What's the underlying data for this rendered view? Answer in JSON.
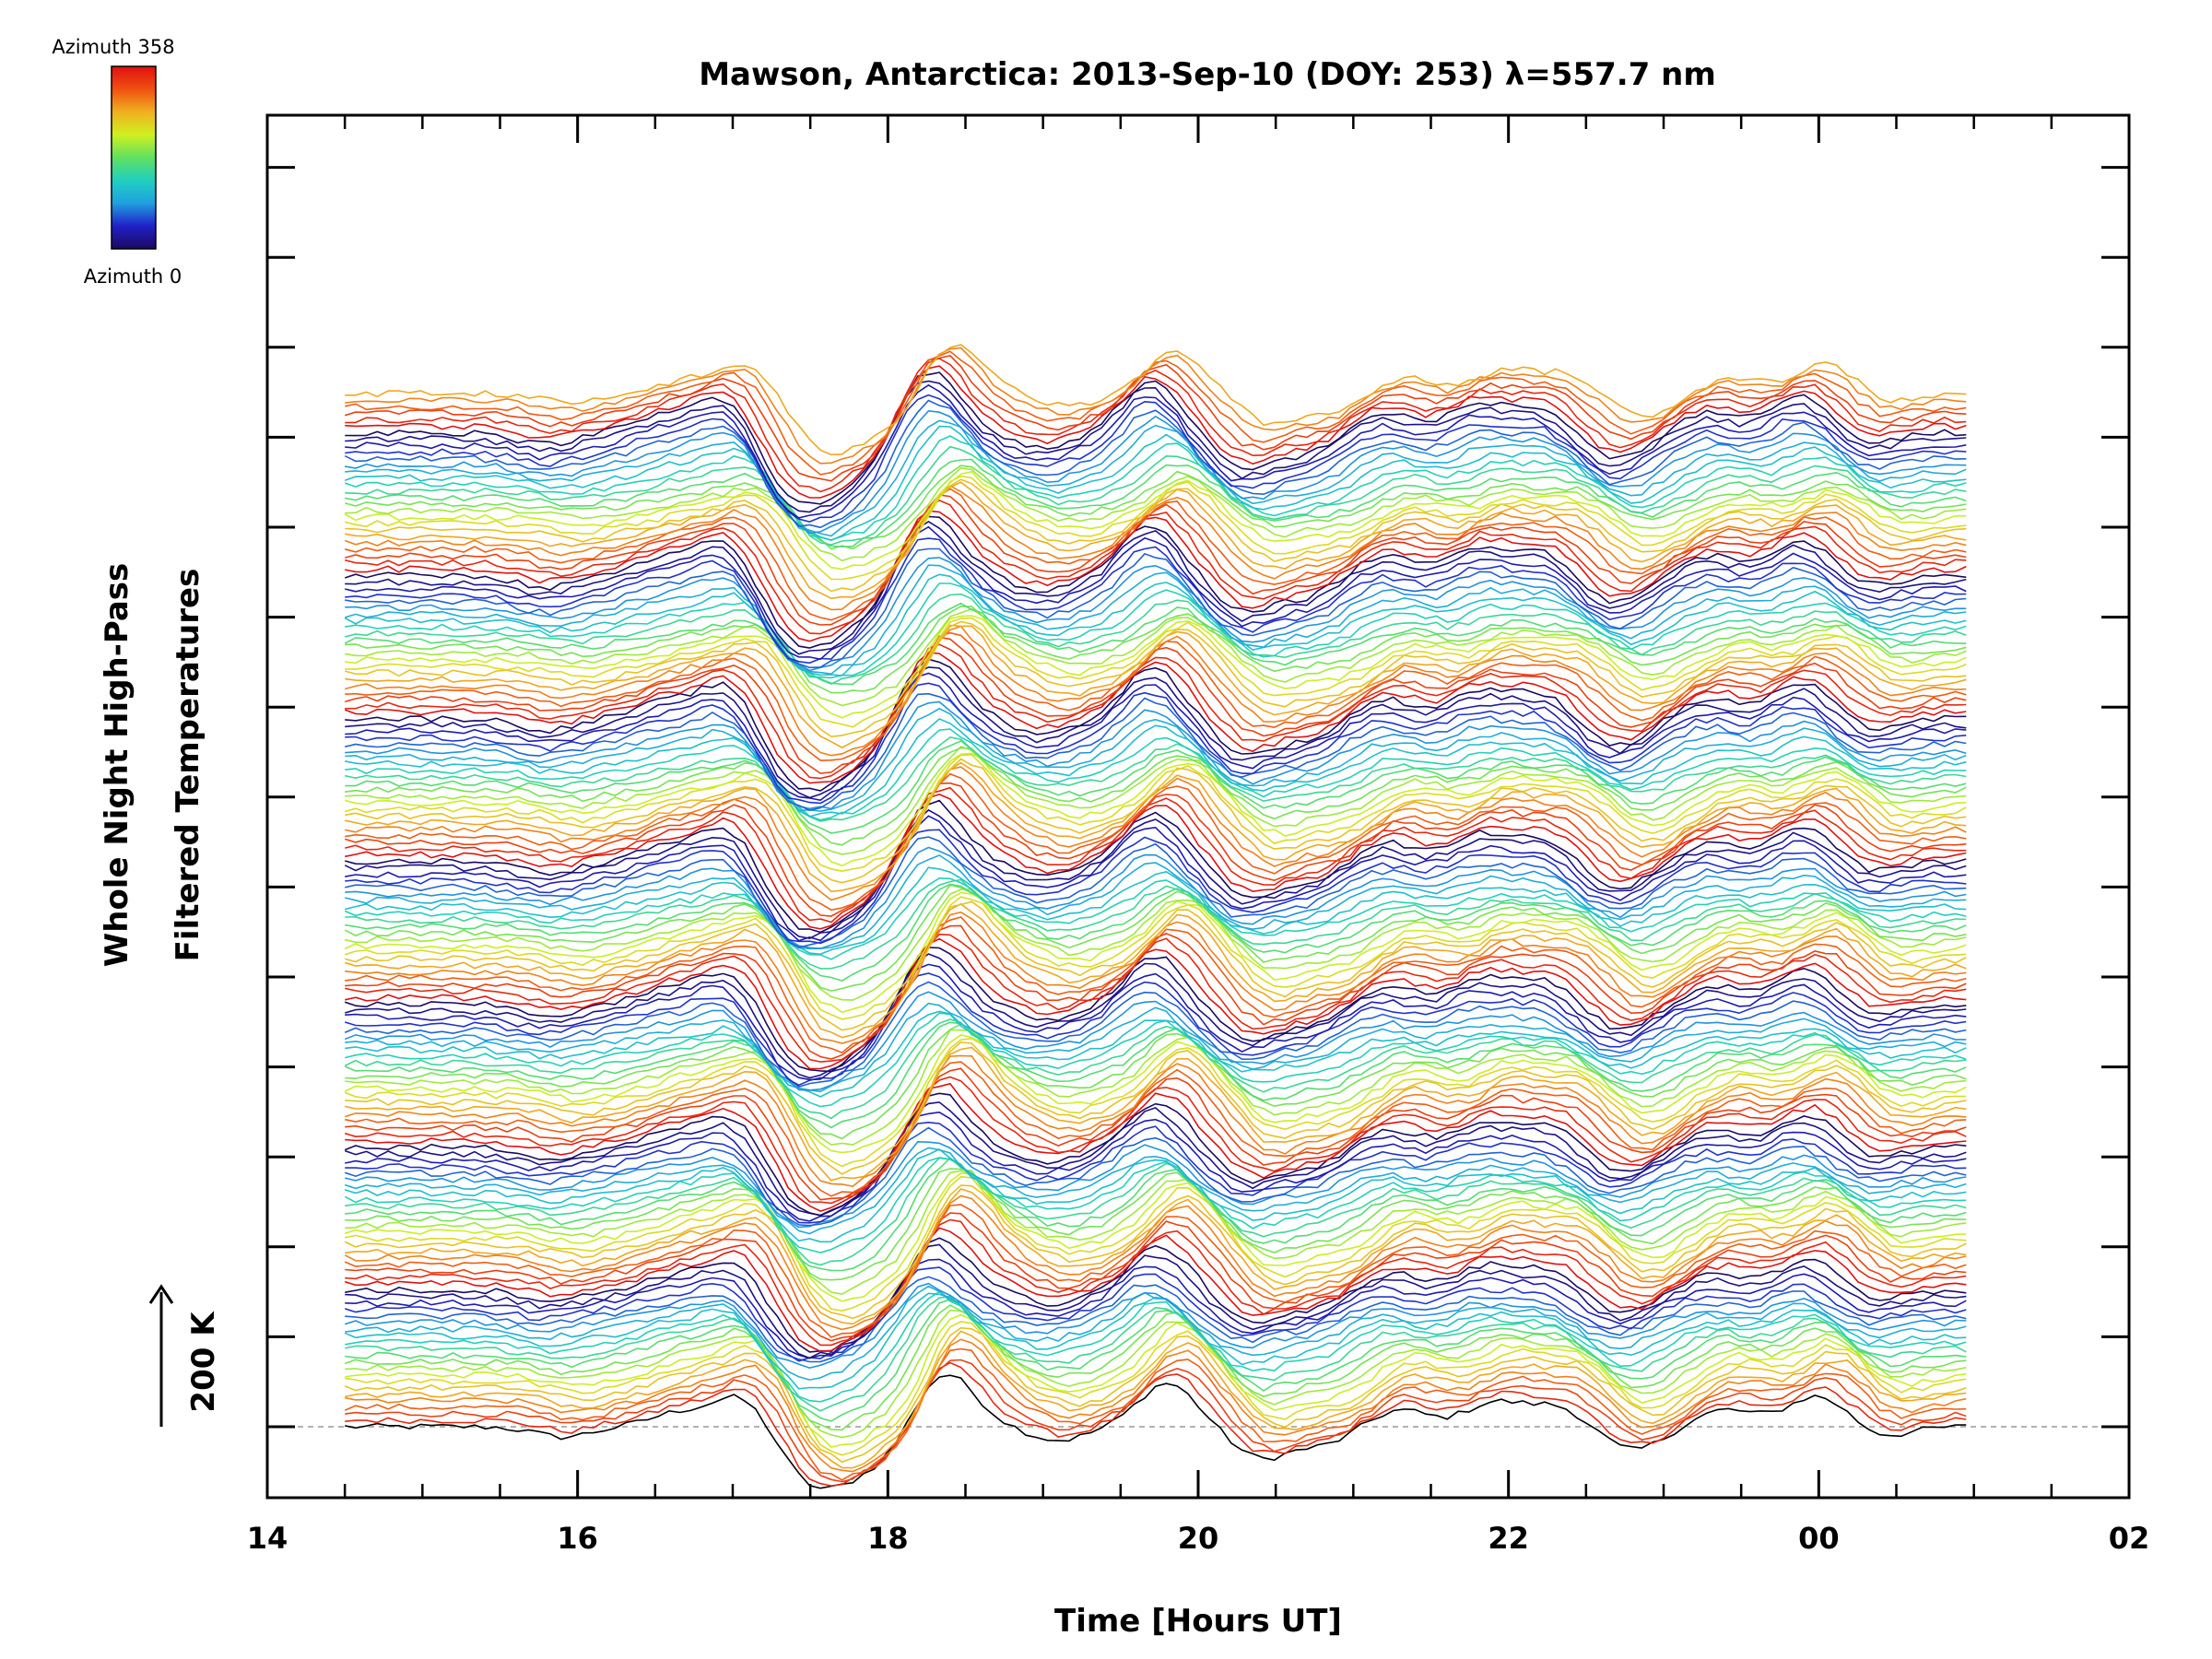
{
  "chart_data": {
    "type": "line",
    "title": "Mawson, Antarctica: 2013-Sep-10 (DOY: 253) λ=557.7 nm",
    "xlabel": "Time [Hours UT]",
    "ylabel_line1": "Whole Night High-Pass",
    "ylabel_line2": "Filtered Temperatures",
    "scale_label": "200 K",
    "x_range_hours": [
      14,
      26
    ],
    "x_ticks": [
      "14",
      "16",
      "18",
      "20",
      "22",
      "00",
      "02"
    ],
    "x_tick_hours": [
      14,
      16,
      18,
      20,
      22,
      24,
      26
    ],
    "data_time_range_hours": [
      14.5,
      24.95
    ],
    "grid": false,
    "legend": "colorbar top-left",
    "colorbar": {
      "top_label": "Azimuth  358",
      "bottom_label": "Azimuth  0",
      "colormap": [
        "#1a0a60",
        "#2020c8",
        "#20a0e0",
        "#20d0c0",
        "#60e060",
        "#d0f020",
        "#f0b020",
        "#f05010",
        "#e01010"
      ]
    },
    "series_count": 160,
    "feature_times_hours": [
      15.9,
      16.65,
      17.05,
      17.45,
      17.7,
      18.0,
      18.3,
      18.45,
      19.1,
      19.8,
      20.4,
      20.8,
      21.3,
      21.9,
      22.3,
      22.8,
      23.4,
      23.9,
      24.05,
      24.4
    ],
    "feature_amplitudes_K": [
      -15,
      20,
      45,
      -60,
      -55,
      -40,
      55,
      35,
      -20,
      65,
      -45,
      -25,
      25,
      35,
      30,
      -35,
      25,
      20,
      30,
      -15
    ],
    "lowest_trace_offset_K": 0
  }
}
